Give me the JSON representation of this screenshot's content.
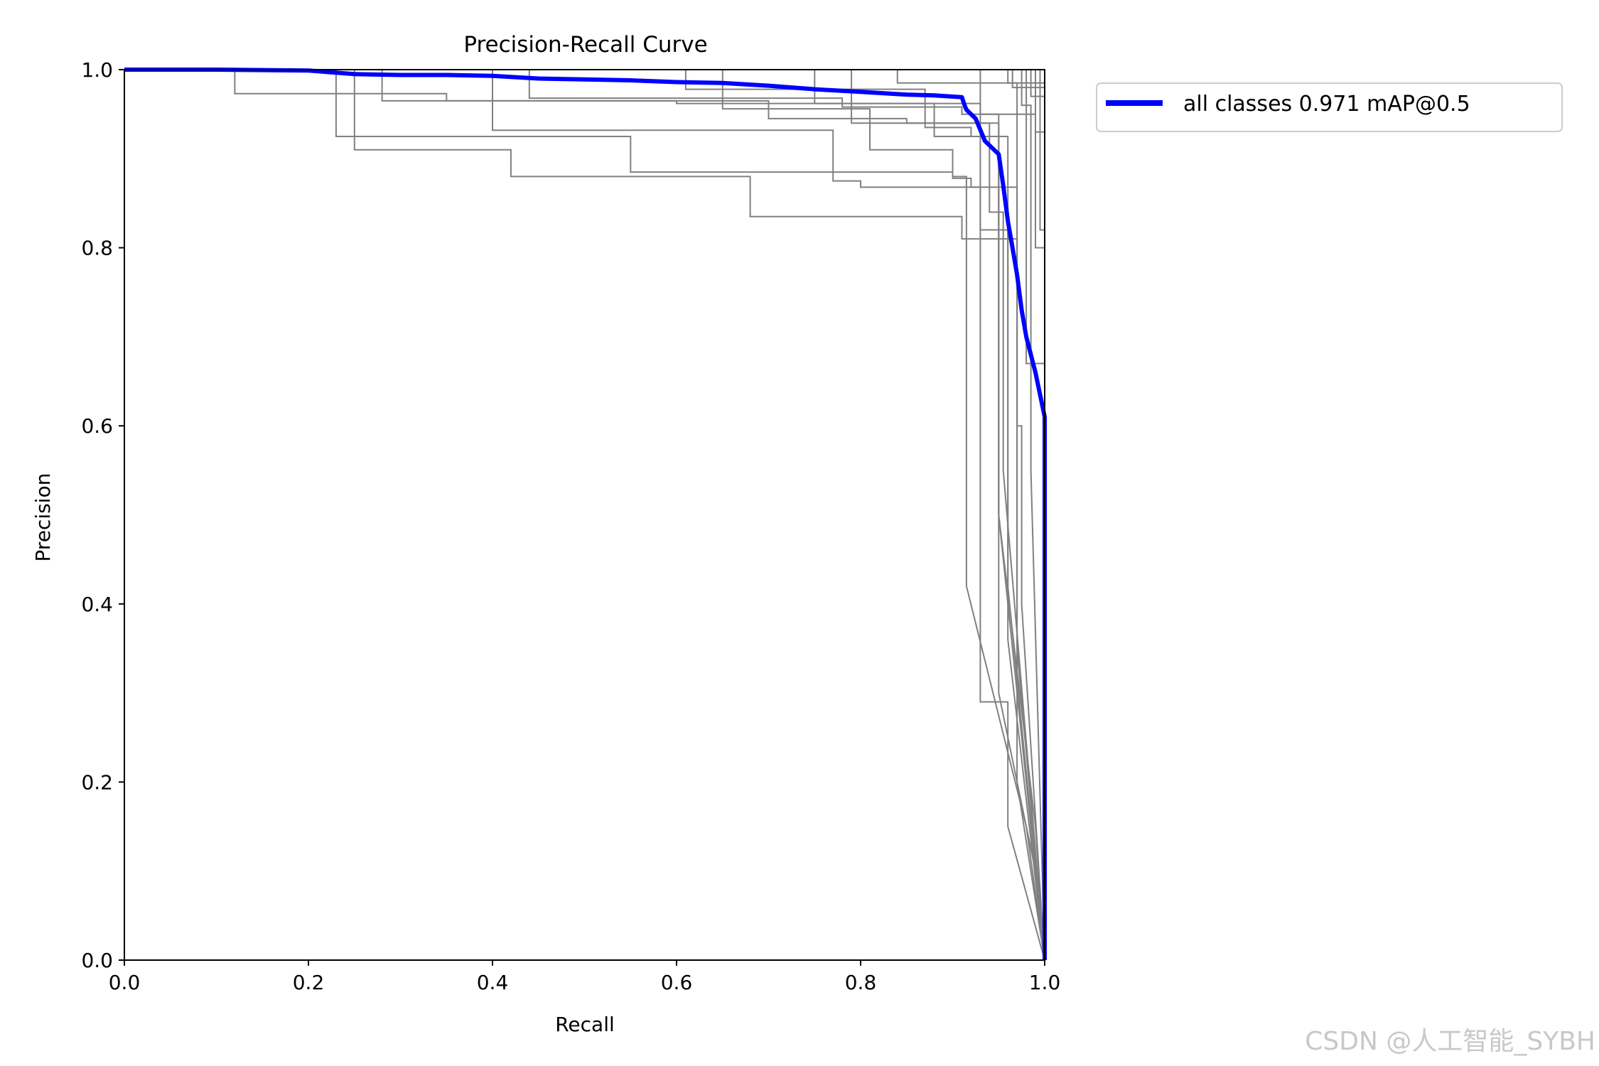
{
  "chart_data": {
    "type": "line",
    "title": "Precision-Recall Curve",
    "xlabel": "Recall",
    "ylabel": "Precision",
    "xlim": [
      0,
      1
    ],
    "ylim": [
      0,
      1
    ],
    "xticks": [
      "0.0",
      "0.2",
      "0.4",
      "0.6",
      "0.8",
      "1.0"
    ],
    "yticks": [
      "0.0",
      "0.2",
      "0.4",
      "0.6",
      "0.8",
      "1.0"
    ],
    "legend_position": "outside-top-right",
    "grid": false,
    "colors": {
      "main": "#0000ff",
      "class": "#808080"
    },
    "series": [
      {
        "name": "all classes 0.971 mAP@0.5",
        "highlight": true,
        "x": [
          0,
          0.1,
          0.2,
          0.25,
          0.3,
          0.35,
          0.4,
          0.45,
          0.5,
          0.55,
          0.6,
          0.65,
          0.7,
          0.75,
          0.8,
          0.85,
          0.88,
          0.91,
          0.913,
          0.915,
          0.925,
          0.935,
          0.94,
          0.95,
          0.955,
          0.96,
          0.965,
          0.97,
          0.975,
          0.98,
          0.99,
          1.0,
          1.0
        ],
        "y": [
          1.0,
          1.0,
          0.999,
          0.995,
          0.994,
          0.994,
          0.993,
          0.99,
          0.989,
          0.988,
          0.986,
          0.985,
          0.982,
          0.978,
          0.975,
          0.972,
          0.971,
          0.969,
          0.96,
          0.955,
          0.945,
          0.92,
          0.915,
          0.905,
          0.87,
          0.83,
          0.8,
          0.77,
          0.73,
          0.7,
          0.66,
          0.61,
          0.0
        ]
      },
      {
        "x": [
          0,
          0.12,
          0.12,
          0.35,
          0.35,
          0.6,
          0.6,
          0.93,
          0.93,
          0.96,
          0.96,
          1.0
        ],
        "y": [
          1.0,
          1.0,
          0.973,
          0.973,
          0.965,
          0.965,
          0.962,
          0.962,
          0.29,
          0.29,
          0.15,
          0.0
        ]
      },
      {
        "x": [
          0,
          0.23,
          0.23,
          0.55,
          0.55,
          0.9,
          0.9,
          0.915,
          0.915,
          0.98,
          1.0
        ],
        "y": [
          1.0,
          1.0,
          0.925,
          0.925,
          0.885,
          0.885,
          0.88,
          0.88,
          0.42,
          0.15,
          0.0
        ]
      },
      {
        "x": [
          0,
          0.25,
          0.25,
          0.42,
          0.42,
          0.68,
          0.68,
          0.91,
          0.91,
          0.97,
          0.97,
          1.0
        ],
        "y": [
          1.0,
          1.0,
          0.91,
          0.91,
          0.88,
          0.88,
          0.835,
          0.835,
          0.81,
          0.81,
          0.2,
          0.0
        ]
      },
      {
        "x": [
          0,
          0.28,
          0.28,
          0.7,
          0.7,
          0.85,
          0.85,
          0.95,
          0.95,
          0.99,
          1.0
        ],
        "y": [
          1.0,
          1.0,
          0.965,
          0.965,
          0.945,
          0.945,
          0.94,
          0.94,
          0.5,
          0.15,
          0.0
        ]
      },
      {
        "x": [
          0,
          0.4,
          0.4,
          0.77,
          0.77,
          0.8,
          0.8,
          0.93,
          0.93,
          0.96,
          0.96,
          1.0
        ],
        "y": [
          1.0,
          1.0,
          0.932,
          0.932,
          0.875,
          0.875,
          0.868,
          0.868,
          0.82,
          0.82,
          0.36,
          0.0
        ]
      },
      {
        "x": [
          0,
          0.44,
          0.44,
          0.78,
          0.78,
          0.91,
          0.91,
          0.95,
          0.95,
          0.99,
          1.0
        ],
        "y": [
          1.0,
          1.0,
          0.968,
          0.968,
          0.958,
          0.958,
          0.95,
          0.95,
          0.3,
          0.1,
          0.0
        ]
      },
      {
        "x": [
          0,
          0.61,
          0.61,
          0.87,
          0.87,
          0.92,
          0.92,
          0.96,
          0.96,
          1.0
        ],
        "y": [
          1.0,
          1.0,
          0.978,
          0.978,
          0.935,
          0.935,
          0.925,
          0.925,
          0.42,
          0.0
        ]
      },
      {
        "x": [
          0,
          0.65,
          0.65,
          0.81,
          0.81,
          0.9,
          0.9,
          0.92,
          0.92,
          0.97,
          0.97,
          1.0
        ],
        "y": [
          1.0,
          1.0,
          0.956,
          0.956,
          0.91,
          0.91,
          0.878,
          0.878,
          0.868,
          0.868,
          0.35,
          0.0
        ]
      },
      {
        "x": [
          0,
          0.75,
          0.75,
          0.88,
          0.88,
          0.95,
          0.95,
          1.0
        ],
        "y": [
          1.0,
          1.0,
          0.962,
          0.962,
          0.925,
          0.925,
          0.5,
          0.0
        ]
      },
      {
        "x": [
          0,
          0.79,
          0.79,
          0.94,
          0.94,
          0.955,
          0.955,
          1.0
        ],
        "y": [
          1.0,
          1.0,
          0.94,
          0.94,
          0.84,
          0.84,
          0.55,
          0.0
        ]
      },
      {
        "x": [
          0,
          0.84,
          0.84,
          0.97,
          0.97,
          0.975,
          0.975,
          1.0
        ],
        "y": [
          1.0,
          1.0,
          0.985,
          0.985,
          0.6,
          0.6,
          0.4,
          0.0
        ]
      },
      {
        "x": [
          0,
          0.93,
          0.93,
          0.99,
          0.99,
          1.0,
          1.0
        ],
        "y": [
          1.0,
          1.0,
          0.95,
          0.95,
          0.8,
          0.8,
          0.0
        ]
      },
      {
        "x": [
          0,
          0.96,
          0.96,
          1.0,
          1.0
        ],
        "y": [
          1.0,
          1.0,
          0.985,
          0.985,
          0.0
        ]
      },
      {
        "x": [
          0,
          0.965,
          0.965,
          1.0,
          1.0
        ],
        "y": [
          1.0,
          1.0,
          0.98,
          0.98,
          0.0
        ]
      },
      {
        "x": [
          0,
          0.985,
          0.985,
          1.0,
          1.0
        ],
        "y": [
          1.0,
          1.0,
          0.97,
          0.97,
          0.0
        ]
      },
      {
        "x": [
          0,
          0.99,
          0.99,
          1.0,
          1.0
        ],
        "y": [
          1.0,
          1.0,
          0.93,
          0.93,
          0.0
        ]
      },
      {
        "x": [
          0,
          0.995,
          0.995,
          1.0,
          1.0
        ],
        "y": [
          1.0,
          1.0,
          0.82,
          0.82,
          0.0
        ]
      },
      {
        "x": [
          0,
          0.98,
          0.98,
          1.0,
          1.0
        ],
        "y": [
          1.0,
          1.0,
          0.67,
          0.67,
          0.0
        ]
      },
      {
        "x": [
          0,
          0.975,
          0.975,
          0.985,
          0.985,
          1.0
        ],
        "y": [
          1.0,
          1.0,
          0.96,
          0.96,
          0.55,
          0.0
        ]
      }
    ]
  },
  "watermark": "CSDN @人工智能_SYBH"
}
